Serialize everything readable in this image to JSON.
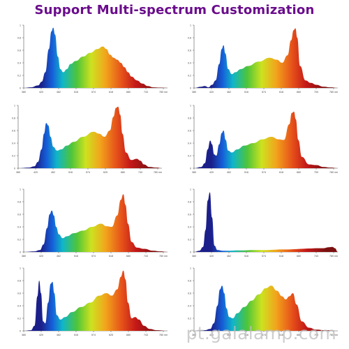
{
  "page": {
    "title": "Support Multi-spectrum Customization",
    "title_color": "#6a0c8c",
    "watermark": "pt.galalamp.com"
  },
  "spectrum_colors": [
    "#1b1f8a",
    "#1560d9",
    "#10b6c8",
    "#4ec43a",
    "#cde21f",
    "#f2a41c",
    "#e6531a",
    "#c41818",
    "#7a1010"
  ],
  "chart_data": [
    {
      "type": "area",
      "title": "",
      "xlabel": "",
      "ylabel": "",
      "xlim": [
        380,
        780
      ],
      "ylim": [
        0,
        1
      ],
      "x_ticks": [
        "380",
        "420",
        "462",
        "516",
        "574",
        "618",
        "680",
        "743",
        "780 nm"
      ],
      "y_ticks": [
        "0",
        "0.2",
        "0.4",
        "0.6",
        "0.8",
        "1"
      ],
      "x": [
        380,
        400,
        420,
        430,
        440,
        450,
        457,
        462,
        467,
        475,
        482,
        490,
        500,
        510,
        525,
        545,
        565,
        585,
        600,
        610,
        620,
        630,
        640,
        650,
        660,
        670,
        680,
        695,
        710,
        725,
        740,
        760,
        780
      ],
      "y": [
        0,
        0.01,
        0.04,
        0.1,
        0.25,
        0.62,
        0.9,
        0.96,
        0.85,
        0.5,
        0.3,
        0.25,
        0.3,
        0.38,
        0.43,
        0.5,
        0.56,
        0.62,
        0.66,
        0.62,
        0.53,
        0.48,
        0.45,
        0.4,
        0.33,
        0.25,
        0.18,
        0.12,
        0.07,
        0.03,
        0.01,
        0.005,
        0
      ]
    },
    {
      "type": "area",
      "title": "",
      "xlabel": "",
      "ylabel": "",
      "xlim": [
        380,
        780
      ],
      "ylim": [
        0,
        1
      ],
      "x_ticks": [
        "380",
        "420",
        "462",
        "516",
        "574",
        "618",
        "660",
        "700",
        "780 nm"
      ],
      "y_ticks": [
        "0",
        "0.2",
        "0.4",
        "0.6",
        "0.8",
        "1"
      ],
      "x": [
        380,
        400,
        410,
        420,
        430,
        440,
        450,
        457,
        462,
        467,
        475,
        485,
        495,
        510,
        530,
        560,
        590,
        610,
        625,
        640,
        650,
        657,
        662,
        667,
        675,
        690,
        705,
        720,
        740,
        760,
        780
      ],
      "y": [
        0,
        0.02,
        0.03,
        0.01,
        0.05,
        0.12,
        0.38,
        0.62,
        0.68,
        0.55,
        0.3,
        0.22,
        0.25,
        0.3,
        0.35,
        0.42,
        0.48,
        0.45,
        0.4,
        0.52,
        0.76,
        0.92,
        0.95,
        0.8,
        0.35,
        0.12,
        0.08,
        0.05,
        0.02,
        0.01,
        0
      ]
    },
    {
      "type": "area",
      "title": "",
      "xlabel": "",
      "ylabel": "",
      "xlim": [
        380,
        780
      ],
      "ylim": [
        0,
        1
      ],
      "x_ticks": [
        "380",
        "420",
        "462",
        "516",
        "574",
        "625",
        "680",
        "743",
        "780 nm"
      ],
      "y_ticks": [
        "0",
        "0.2",
        "0.4",
        "0.6",
        "0.8",
        "1"
      ],
      "x": [
        380,
        410,
        425,
        435,
        445,
        452,
        458,
        464,
        470,
        478,
        488,
        500,
        515,
        535,
        560,
        590,
        605,
        620,
        635,
        645,
        652,
        658,
        664,
        670,
        680,
        695,
        710,
        720,
        730,
        745,
        765,
        780
      ],
      "y": [
        0,
        0.01,
        0.03,
        0.1,
        0.3,
        0.55,
        0.72,
        0.68,
        0.5,
        0.34,
        0.28,
        0.3,
        0.36,
        0.42,
        0.5,
        0.58,
        0.55,
        0.5,
        0.6,
        0.82,
        0.96,
        0.98,
        0.85,
        0.55,
        0.25,
        0.13,
        0.15,
        0.12,
        0.06,
        0.02,
        0.01,
        0
      ]
    },
    {
      "type": "area",
      "title": "",
      "xlabel": "",
      "ylabel": "",
      "xlim": [
        380,
        780
      ],
      "ylim": [
        0,
        1
      ],
      "x_ticks": [
        "380",
        "420",
        "462",
        "516",
        "574",
        "618",
        "660",
        "700",
        "780 nm"
      ],
      "y_ticks": [
        "0",
        "0.2",
        "0.4",
        "0.6",
        "0.8",
        "1"
      ],
      "x": [
        380,
        400,
        410,
        418,
        425,
        430,
        436,
        442,
        450,
        457,
        462,
        468,
        475,
        485,
        500,
        520,
        545,
        570,
        595,
        615,
        630,
        645,
        652,
        658,
        663,
        670,
        680,
        700,
        720,
        740,
        760,
        780
      ],
      "y": [
        0,
        0.02,
        0.08,
        0.3,
        0.44,
        0.38,
        0.22,
        0.2,
        0.38,
        0.56,
        0.6,
        0.45,
        0.28,
        0.25,
        0.3,
        0.36,
        0.4,
        0.46,
        0.5,
        0.46,
        0.45,
        0.7,
        0.88,
        0.9,
        0.78,
        0.45,
        0.18,
        0.06,
        0.05,
        0.02,
        0.01,
        0
      ]
    },
    {
      "type": "area",
      "title": "",
      "xlabel": "",
      "ylabel": "",
      "xlim": [
        380,
        780
      ],
      "ylim": [
        0,
        1
      ],
      "x_ticks": [
        "380",
        "420",
        "462",
        "516",
        "574",
        "618",
        "680",
        "743",
        "780 nm"
      ],
      "y_ticks": [
        "0",
        "0.2",
        "0.4",
        "0.6",
        "0.8",
        "1"
      ],
      "x": [
        380,
        410,
        425,
        435,
        445,
        452,
        458,
        464,
        470,
        478,
        488,
        500,
        520,
        545,
        570,
        595,
        610,
        625,
        640,
        650,
        657,
        663,
        670,
        680,
        695,
        715,
        740,
        760,
        780
      ],
      "y": [
        0,
        0.01,
        0.03,
        0.12,
        0.38,
        0.6,
        0.66,
        0.58,
        0.4,
        0.28,
        0.22,
        0.25,
        0.3,
        0.34,
        0.4,
        0.45,
        0.41,
        0.4,
        0.58,
        0.83,
        0.92,
        0.75,
        0.45,
        0.16,
        0.07,
        0.05,
        0.02,
        0.01,
        0
      ]
    },
    {
      "type": "area",
      "title": "",
      "xlabel": "",
      "ylabel": "",
      "xlim": [
        380,
        780
      ],
      "ylim": [
        0,
        1
      ],
      "x_ticks": [
        "380",
        "420",
        "462",
        "516",
        "574",
        "618",
        "680",
        "743",
        "780 nm"
      ],
      "y_ticks": [
        "0",
        "0.2",
        "0.4",
        "0.6",
        "0.8",
        "1"
      ],
      "x": [
        380,
        395,
        405,
        412,
        418,
        424,
        430,
        437,
        445,
        460,
        480,
        500,
        520,
        540,
        560,
        580,
        600,
        620,
        640,
        660,
        680,
        700,
        720,
        740,
        755,
        765,
        772,
        780
      ],
      "y": [
        0,
        0.02,
        0.08,
        0.35,
        0.82,
        0.95,
        0.55,
        0.1,
        0.03,
        0.02,
        0.02,
        0.025,
        0.025,
        0.03,
        0.03,
        0.03,
        0.035,
        0.04,
        0.04,
        0.045,
        0.05,
        0.055,
        0.06,
        0.06,
        0.075,
        0.08,
        0.06,
        0
      ]
    },
    {
      "type": "area",
      "title": "",
      "xlabel": "",
      "ylabel": "",
      "xlim": [
        380,
        780
      ],
      "ylim": [
        0,
        1
      ],
      "x_ticks": [
        "380",
        "420",
        "462",
        "516",
        "574",
        "625",
        "680",
        "743",
        "780 nm"
      ],
      "y_ticks": [
        "0",
        "0.2",
        "0.4",
        "0.6",
        "0.8",
        "1"
      ],
      "x": [
        380,
        400,
        410,
        418,
        423,
        428,
        434,
        440,
        448,
        455,
        460,
        465,
        472,
        482,
        495,
        515,
        540,
        565,
        590,
        610,
        625,
        640,
        650,
        657,
        663,
        670,
        680,
        690,
        700,
        715,
        730,
        750,
        780
      ],
      "y": [
        0,
        0.01,
        0.08,
        0.55,
        0.8,
        0.6,
        0.15,
        0.12,
        0.45,
        0.75,
        0.78,
        0.6,
        0.25,
        0.18,
        0.22,
        0.3,
        0.38,
        0.45,
        0.56,
        0.6,
        0.56,
        0.66,
        0.86,
        0.96,
        0.82,
        0.45,
        0.2,
        0.22,
        0.18,
        0.08,
        0.03,
        0.01,
        0
      ]
    },
    {
      "type": "area",
      "title": "",
      "xlabel": "",
      "ylabel": "",
      "xlim": [
        380,
        780
      ],
      "ylim": [
        0,
        1
      ],
      "x_ticks": [
        "380",
        "420",
        "462",
        "516",
        "574",
        "618",
        "660",
        "700",
        "780 nm"
      ],
      "y_ticks": [
        "0",
        "0.2",
        "0.4",
        "0.6",
        "0.8",
        "1"
      ],
      "x": [
        380,
        410,
        425,
        435,
        445,
        452,
        458,
        464,
        470,
        478,
        488,
        500,
        520,
        540,
        560,
        580,
        595,
        610,
        625,
        635,
        645,
        655,
        665,
        680,
        700,
        720,
        745,
        780
      ],
      "y": [
        0,
        0.01,
        0.03,
        0.12,
        0.4,
        0.66,
        0.72,
        0.6,
        0.36,
        0.22,
        0.2,
        0.28,
        0.38,
        0.48,
        0.58,
        0.68,
        0.72,
        0.64,
        0.55,
        0.5,
        0.55,
        0.6,
        0.42,
        0.15,
        0.05,
        0.02,
        0.01,
        0
      ]
    }
  ]
}
